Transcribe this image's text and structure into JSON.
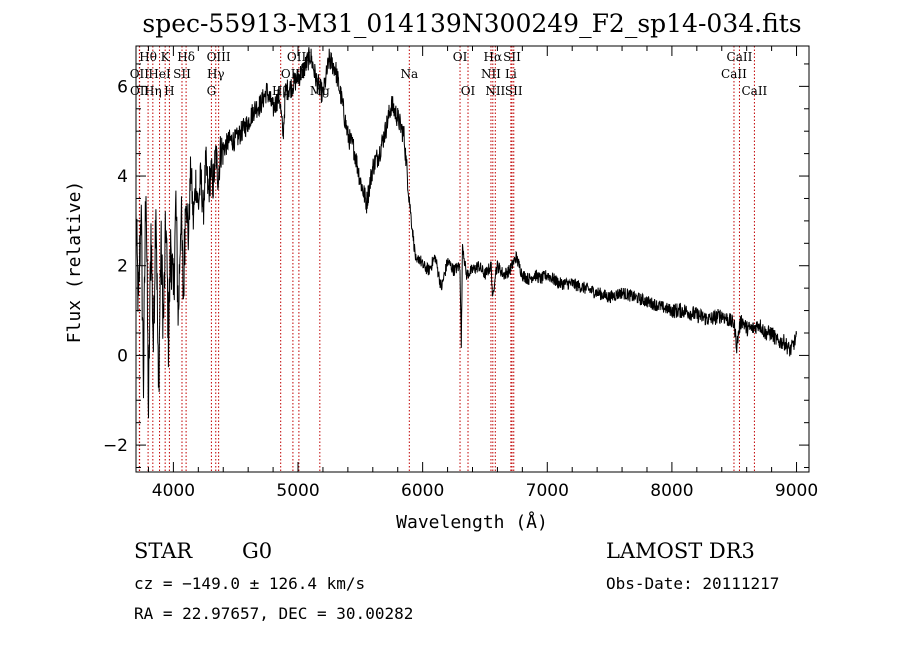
{
  "chart_data": {
    "type": "line",
    "title": "spec-55913-M31_014139N300249_F2_sp14-034.fits",
    "xlabel": "Wavelength (Å)",
    "ylabel": "Flux (relative)",
    "xlim": [
      3700,
      9100
    ],
    "ylim": [
      -2.6,
      6.9
    ],
    "x_ticks": [
      4000,
      5000,
      6000,
      7000,
      8000,
      9000
    ],
    "y_ticks": [
      -2,
      0,
      2,
      4,
      6
    ],
    "spectrum": {
      "x": [
        3700,
        3720,
        3740,
        3760,
        3780,
        3800,
        3820,
        3840,
        3860,
        3880,
        3900,
        3920,
        3940,
        3960,
        3980,
        4000,
        4020,
        4040,
        4060,
        4080,
        4100,
        4120,
        4140,
        4160,
        4180,
        4200,
        4220,
        4240,
        4260,
        4280,
        4300,
        4320,
        4340,
        4360,
        4380,
        4400,
        4450,
        4500,
        4550,
        4600,
        4650,
        4700,
        4750,
        4800,
        4850,
        4880,
        4900,
        4950,
        5000,
        5050,
        5100,
        5150,
        5200,
        5250,
        5300,
        5350,
        5400,
        5450,
        5500,
        5550,
        5600,
        5650,
        5700,
        5750,
        5800,
        5850,
        5890,
        5910,
        5930,
        5950,
        5970,
        6000,
        6050,
        6100,
        6150,
        6200,
        6250,
        6300,
        6310,
        6320,
        6350,
        6400,
        6450,
        6500,
        6550,
        6563,
        6580,
        6600,
        6650,
        6700,
        6750,
        6800,
        6850,
        6900,
        6950,
        7000,
        7100,
        7200,
        7300,
        7400,
        7500,
        7600,
        7700,
        7800,
        7900,
        8000,
        8100,
        8200,
        8300,
        8400,
        8450,
        8500,
        8520,
        8540,
        8560,
        8600,
        8650,
        8700,
        8750,
        8800,
        8850,
        8900,
        8950,
        9000
      ],
      "y": [
        3.0,
        1.0,
        3.4,
        -0.6,
        4.1,
        -1.3,
        2.8,
        0.2,
        3.6,
        -0.9,
        2.5,
        0.7,
        3.0,
        0.4,
        2.6,
        1.2,
        3.4,
        0.8,
        3.3,
        1.3,
        3.7,
        2.6,
        4.2,
        3.0,
        3.9,
        3.3,
        4.0,
        3.2,
        4.3,
        3.6,
        4.1,
        3.8,
        4.5,
        4.0,
        4.6,
        4.6,
        4.8,
        4.8,
        5.0,
        5.2,
        5.5,
        5.6,
        5.9,
        5.5,
        5.8,
        4.9,
        5.9,
        6.0,
        6.2,
        6.4,
        6.7,
        6.1,
        5.8,
        6.6,
        6.4,
        5.7,
        4.9,
        4.6,
        3.9,
        3.4,
        4.2,
        4.5,
        5.0,
        5.6,
        5.3,
        4.9,
        3.6,
        3.0,
        2.5,
        2.0,
        2.2,
        2.0,
        1.9,
        2.2,
        1.5,
        2.1,
        1.9,
        2.0,
        0.2,
        2.5,
        1.8,
        1.9,
        2.0,
        1.8,
        2.0,
        1.2,
        1.8,
        2.0,
        1.8,
        1.9,
        2.2,
        1.8,
        1.7,
        1.8,
        1.7,
        1.8,
        1.6,
        1.6,
        1.5,
        1.4,
        1.3,
        1.4,
        1.3,
        1.2,
        1.1,
        1.0,
        1.0,
        0.9,
        0.8,
        0.9,
        0.8,
        0.7,
        0.2,
        0.6,
        0.8,
        0.6,
        0.6,
        0.7,
        0.5,
        0.5,
        0.3,
        0.3,
        0.1,
        0.4
      ]
    },
    "line_markers": [
      {
        "label": "Hθ",
        "wave": 3797,
        "row": 0
      },
      {
        "label": "OII",
        "wave": 3727,
        "row": 1
      },
      {
        "label": "OII",
        "wave": 3729,
        "row": 2
      },
      {
        "label": "K",
        "wave": 3934,
        "row": 0
      },
      {
        "label": "HeI",
        "wave": 3889,
        "row": 1
      },
      {
        "label": "Hη",
        "wave": 3835,
        "row": 2
      },
      {
        "label": "Hδ",
        "wave": 4102,
        "row": 0
      },
      {
        "label": "SII",
        "wave": 4069,
        "row": 1
      },
      {
        "label": "H",
        "wave": 3968,
        "row": 2
      },
      {
        "label": "OIII",
        "wave": 4363,
        "row": 0
      },
      {
        "label": "Hγ",
        "wave": 4340,
        "row": 1
      },
      {
        "label": "G",
        "wave": 4305,
        "row": 2
      },
      {
        "label": "OIII",
        "wave": 5007,
        "row": 0
      },
      {
        "label": "OIII",
        "wave": 4959,
        "row": 1
      },
      {
        "label": "Hβ",
        "wave": 4861,
        "row": 2
      },
      {
        "label": "Mg",
        "wave": 5175,
        "row": 2
      },
      {
        "label": "Na",
        "wave": 5893,
        "row": 1
      },
      {
        "label": "OI",
        "wave": 6300,
        "row": 0
      },
      {
        "label": "OI",
        "wave": 6364,
        "row": 2
      },
      {
        "label": "Hα",
        "wave": 6563,
        "row": 0
      },
      {
        "label": "NII",
        "wave": 6548,
        "row": 1
      },
      {
        "label": "NII",
        "wave": 6583,
        "row": 2
      },
      {
        "label": "SII",
        "wave": 6717,
        "row": 0
      },
      {
        "label": "Li",
        "wave": 6708,
        "row": 1
      },
      {
        "label": "SII",
        "wave": 6731,
        "row": 2
      },
      {
        "label": "CaII",
        "wave": 8542,
        "row": 0
      },
      {
        "label": "CaII",
        "wave": 8498,
        "row": 1
      },
      {
        "label": "CaII",
        "wave": 8662,
        "row": 2
      }
    ],
    "colors": {
      "spectrum": "#000000",
      "markers": "#c00000",
      "frame": "#000000"
    },
    "grid": false
  },
  "info": {
    "object_type": "STAR",
    "subclass": "G0",
    "survey": "LAMOST DR3",
    "redshift": "cz = −149.0 ± 126.4 km/s",
    "obs_date": "Obs-Date: 20111217",
    "coords": "RA =  22.97657, DEC =  30.00282"
  }
}
